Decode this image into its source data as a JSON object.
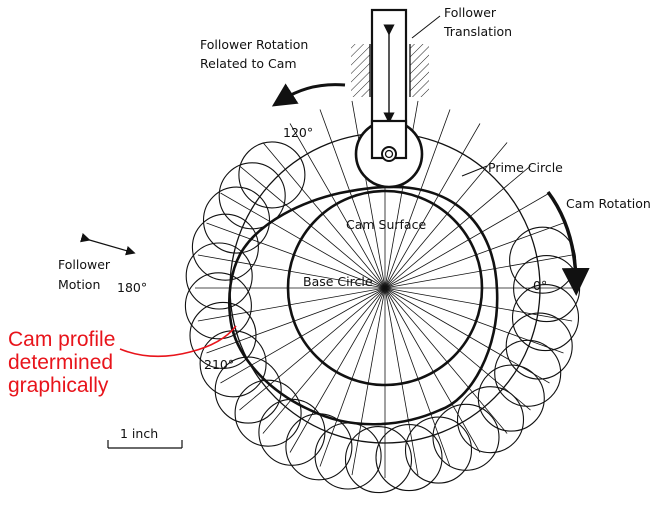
{
  "labels": {
    "follower_translation_1": "Follower",
    "follower_translation_2": "Translation",
    "follower_rotation_1": "Follower Rotation",
    "follower_rotation_2": "Related to Cam",
    "angle_120": "120°",
    "prime_circle": "Prime Circle",
    "cam_rotation": "Cam Rotation",
    "cam_surface": "Cam Surface",
    "follower_motion_1": "Follower",
    "follower_motion_2": "Motion",
    "angle_180": "180°",
    "base_circle": "Base Circle",
    "angle_0": "0°",
    "angle_210": "210°",
    "scale": "1 inch"
  },
  "annotation": {
    "line1": "Cam profile",
    "line2": "determined",
    "line3": "graphically",
    "color": "#e8141b"
  },
  "ray_count": 36,
  "roller_count": 24
}
